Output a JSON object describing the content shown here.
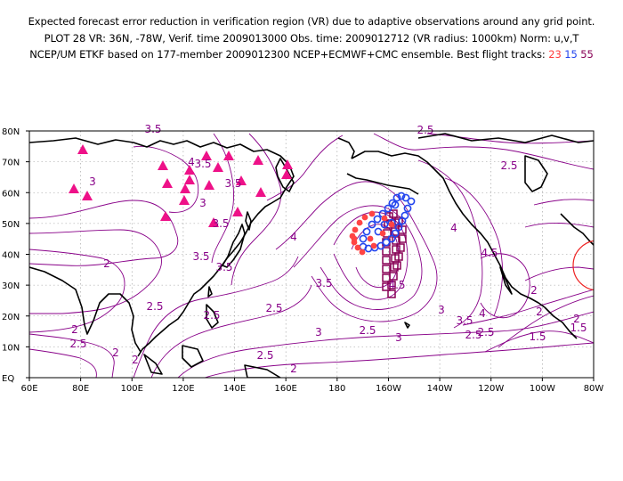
{
  "header": {
    "line1": "Expected forecast error reduction in verification region (VR) due to adaptive observations around any grid point.",
    "line2": "PLOT 28 VR: 36N, -78W, Verif. time 2009013000 Obs. time: 2009012712 (VR radius: 1000km) Norm: u,v,T",
    "line3_prefix": "NCEP/UM ETKF based on 177-member 2009012300 NCEP+ECMWF+CMC ensemble. Best flight tracks:",
    "track_red": "23",
    "track_blue": "15",
    "track_purple": "55"
  },
  "map": {
    "lon_labels": [
      "60E",
      "80E",
      "100E",
      "120E",
      "140E",
      "160E",
      "180",
      "160W",
      "140W",
      "120W",
      "100W",
      "80W"
    ],
    "lat_labels": [
      "EQ",
      "10N",
      "20N",
      "30N",
      "40N",
      "50N",
      "60N",
      "70N",
      "80N"
    ],
    "contour_labels": [
      "3.5",
      "3.5",
      "3.5",
      "3",
      "3",
      "3.5",
      "3.5",
      "4",
      "3.5",
      "4",
      "2.5",
      "2.5",
      "2",
      "2.5",
      "2.5",
      "2",
      "2",
      "2",
      "2.5",
      "3",
      "3.5",
      "2.5",
      "2.5",
      "4",
      "4.5",
      "4.5",
      "3",
      "3",
      "3.5",
      "4",
      "2.5",
      "1.5",
      "2",
      "1.5",
      "2",
      "2",
      "2",
      "2.5",
      "2.5"
    ],
    "colors": {
      "contour": "#880088",
      "coast": "#000000",
      "grid": "#888888",
      "triangle_marker": "#ee1188",
      "track_red": "#ff4444",
      "track_blue": "#2244ee",
      "track_purple": "#880055",
      "verification_circle": "#ee2222"
    }
  }
}
